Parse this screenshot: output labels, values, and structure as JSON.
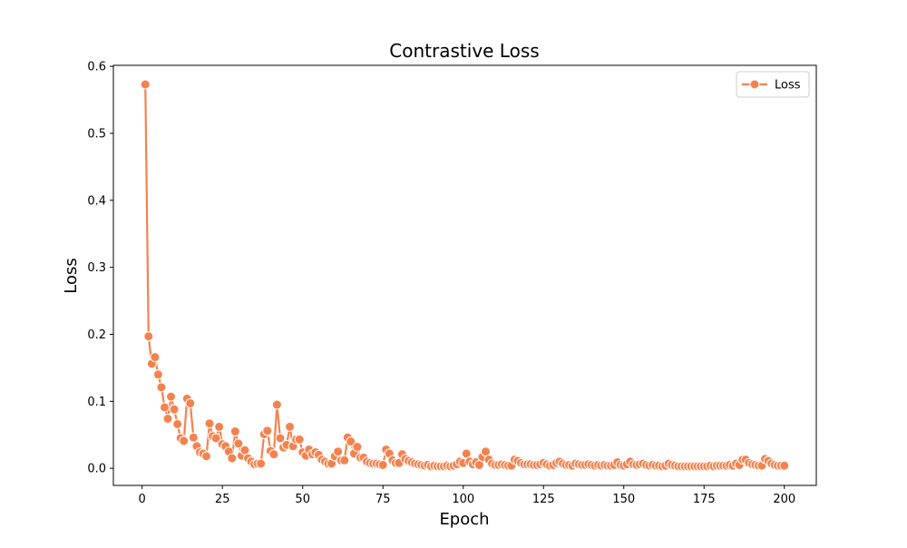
{
  "chart_data": {
    "type": "line",
    "title": "Contrastive Loss",
    "x_label": "Epoch",
    "y_label": "Loss",
    "x": [
      1,
      2,
      3,
      4,
      5,
      6,
      7,
      8,
      9,
      10,
      11,
      12,
      13,
      14,
      15,
      16,
      17,
      18,
      19,
      20,
      21,
      22,
      23,
      24,
      25,
      26,
      27,
      28,
      29,
      30,
      31,
      32,
      33,
      34,
      35,
      36,
      37,
      38,
      39,
      40,
      41,
      42,
      43,
      44,
      45,
      46,
      47,
      48,
      49,
      50,
      51,
      52,
      53,
      54,
      55,
      56,
      57,
      58,
      59,
      60,
      61,
      62,
      63,
      64,
      65,
      66,
      67,
      68,
      69,
      70,
      71,
      72,
      73,
      74,
      75,
      76,
      77,
      78,
      79,
      80,
      81,
      82,
      83,
      84,
      85,
      86,
      87,
      88,
      89,
      90,
      91,
      92,
      93,
      94,
      95,
      96,
      97,
      98,
      99,
      100,
      101,
      102,
      103,
      104,
      105,
      106,
      107,
      108,
      109,
      110,
      111,
      112,
      113,
      114,
      115,
      116,
      117,
      118,
      119,
      120,
      121,
      122,
      123,
      124,
      125,
      126,
      127,
      128,
      129,
      130,
      131,
      132,
      133,
      134,
      135,
      136,
      137,
      138,
      139,
      140,
      141,
      142,
      143,
      144,
      145,
      146,
      147,
      148,
      149,
      150,
      151,
      152,
      153,
      154,
      155,
      156,
      157,
      158,
      159,
      160,
      161,
      162,
      163,
      164,
      165,
      166,
      167,
      168,
      169,
      170,
      171,
      172,
      173,
      174,
      175,
      176,
      177,
      178,
      179,
      180,
      181,
      182,
      183,
      184,
      185,
      186,
      187,
      188,
      189,
      190,
      191,
      192,
      193,
      194,
      195,
      196,
      197,
      198,
      199,
      200
    ],
    "series": [
      {
        "name": "Loss",
        "color": "#f4824f",
        "values": [
          0.573,
          0.197,
          0.156,
          0.166,
          0.14,
          0.121,
          0.091,
          0.074,
          0.107,
          0.088,
          0.066,
          0.045,
          0.041,
          0.104,
          0.097,
          0.046,
          0.033,
          0.024,
          0.022,
          0.018,
          0.067,
          0.048,
          0.045,
          0.062,
          0.036,
          0.033,
          0.025,
          0.015,
          0.055,
          0.037,
          0.019,
          0.027,
          0.015,
          0.01,
          0.006,
          0.007,
          0.007,
          0.051,
          0.056,
          0.026,
          0.021,
          0.095,
          0.045,
          0.031,
          0.035,
          0.062,
          0.033,
          0.043,
          0.043,
          0.024,
          0.019,
          0.028,
          0.021,
          0.024,
          0.02,
          0.013,
          0.01,
          0.007,
          0.007,
          0.018,
          0.025,
          0.012,
          0.012,
          0.046,
          0.04,
          0.022,
          0.032,
          0.016,
          0.016,
          0.01,
          0.008,
          0.007,
          0.007,
          0.006,
          0.005,
          0.028,
          0.022,
          0.012,
          0.008,
          0.008,
          0.021,
          0.014,
          0.011,
          0.009,
          0.007,
          0.006,
          0.005,
          0.004,
          0.005,
          0.003,
          0.004,
          0.003,
          0.003,
          0.003,
          0.004,
          0.003,
          0.004,
          0.006,
          0.01,
          0.008,
          0.022,
          0.01,
          0.006,
          0.009,
          0.005,
          0.017,
          0.025,
          0.013,
          0.007,
          0.005,
          0.005,
          0.006,
          0.005,
          0.004,
          0.004,
          0.013,
          0.011,
          0.008,
          0.006,
          0.006,
          0.006,
          0.005,
          0.005,
          0.006,
          0.008,
          0.006,
          0.004,
          0.005,
          0.008,
          0.01,
          0.007,
          0.005,
          0.005,
          0.004,
          0.007,
          0.006,
          0.005,
          0.005,
          0.006,
          0.005,
          0.004,
          0.005,
          0.004,
          0.005,
          0.004,
          0.004,
          0.005,
          0.009,
          0.005,
          0.004,
          0.006,
          0.01,
          0.006,
          0.005,
          0.006,
          0.007,
          0.005,
          0.004,
          0.005,
          0.004,
          0.004,
          0.003,
          0.004,
          0.007,
          0.005,
          0.004,
          0.003,
          0.003,
          0.003,
          0.003,
          0.003,
          0.003,
          0.003,
          0.003,
          0.003,
          0.003,
          0.004,
          0.003,
          0.004,
          0.004,
          0.004,
          0.004,
          0.005,
          0.004,
          0.007,
          0.005,
          0.013,
          0.013,
          0.008,
          0.006,
          0.005,
          0.004,
          0.004,
          0.014,
          0.011,
          0.007,
          0.005,
          0.004,
          0.004,
          0.004
        ]
      }
    ],
    "xlim": [
      -8.95,
      209.95
    ],
    "ylim": [
      -0.0255,
      0.6015
    ],
    "xticks": [
      0,
      25,
      50,
      75,
      100,
      125,
      150,
      175,
      200
    ],
    "yticks": [
      {
        "value": 0,
        "label": "0.0"
      },
      0.1,
      0.2,
      0.3,
      0.4,
      0.5,
      0.6
    ],
    "legend": "upper right",
    "grid": false
  }
}
